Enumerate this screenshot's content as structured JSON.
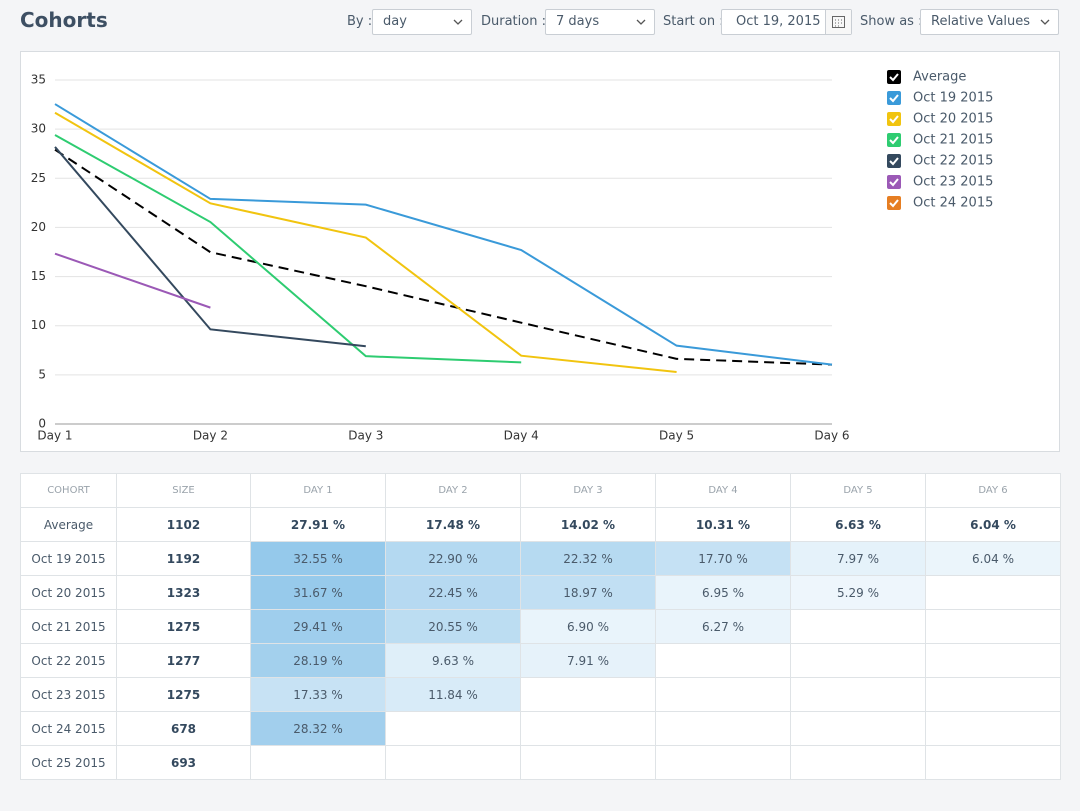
{
  "header": {
    "title": "Cohorts",
    "by_label": "By :",
    "by_value": "day",
    "duration_label": "Duration :",
    "duration_value": "7 days",
    "start_label": "Start on :",
    "start_value": "Oct 19, 2015",
    "show_label": "Show as :",
    "show_value": "Relative Values"
  },
  "chart_data": {
    "type": "line",
    "categories": [
      "Day 1",
      "Day 2",
      "Day 3",
      "Day 4",
      "Day 5",
      "Day 6"
    ],
    "series": [
      {
        "name": "Average",
        "color": "#000000",
        "dashed": true,
        "values": [
          27.91,
          17.48,
          14.02,
          10.31,
          6.63,
          6.04
        ]
      },
      {
        "name": "Oct 19 2015",
        "color": "#3a9ad9",
        "values": [
          32.55,
          22.9,
          22.32,
          17.7,
          7.97,
          6.04
        ]
      },
      {
        "name": "Oct 20 2015",
        "color": "#f1c40f",
        "values": [
          31.67,
          22.45,
          18.97,
          6.95,
          5.29,
          null
        ]
      },
      {
        "name": "Oct 21 2015",
        "color": "#2ecc71",
        "values": [
          29.41,
          20.55,
          6.9,
          6.27,
          null,
          null
        ]
      },
      {
        "name": "Oct 22 2015",
        "color": "#34495e",
        "values": [
          28.19,
          9.63,
          7.91,
          null,
          null,
          null
        ]
      },
      {
        "name": "Oct 23 2015",
        "color": "#9b59b6",
        "values": [
          17.33,
          11.84,
          null,
          null,
          null,
          null
        ]
      },
      {
        "name": "Oct 24 2015",
        "color": "#e67e22",
        "values": [
          28.32,
          null,
          null,
          null,
          null,
          null
        ]
      }
    ],
    "ylim": [
      0,
      35
    ],
    "yticks": [
      0,
      5,
      10,
      15,
      20,
      25,
      30,
      35
    ],
    "grid": true,
    "legend": "right"
  },
  "table": {
    "headers": [
      "COHORT",
      "SIZE",
      "DAY 1",
      "DAY 2",
      "DAY 3",
      "DAY 4",
      "DAY 5",
      "DAY 6"
    ],
    "rows": [
      [
        "Average",
        "1102",
        "27.91 %",
        "17.48 %",
        "14.02 %",
        "10.31 %",
        "6.63 %",
        "6.04 %"
      ],
      [
        "Oct 19 2015",
        "1192",
        "32.55 %",
        "22.90 %",
        "22.32 %",
        "17.70 %",
        "7.97 %",
        "6.04 %"
      ],
      [
        "Oct 20 2015",
        "1323",
        "31.67 %",
        "22.45 %",
        "18.97 %",
        "6.95 %",
        "5.29 %",
        null
      ],
      [
        "Oct 21 2015",
        "1275",
        "29.41 %",
        "20.55 %",
        "6.90 %",
        "6.27 %",
        null,
        null
      ],
      [
        "Oct 22 2015",
        "1277",
        "28.19 %",
        "9.63 %",
        "7.91 %",
        null,
        null,
        null
      ],
      [
        "Oct 23 2015",
        "1275",
        "17.33 %",
        "11.84 %",
        null,
        null,
        null,
        null
      ],
      [
        "Oct 24 2015",
        "678",
        "28.32 %",
        null,
        null,
        null,
        null,
        null
      ],
      [
        "Oct 25 2015",
        "693",
        null,
        null,
        null,
        null,
        null,
        null
      ]
    ]
  }
}
